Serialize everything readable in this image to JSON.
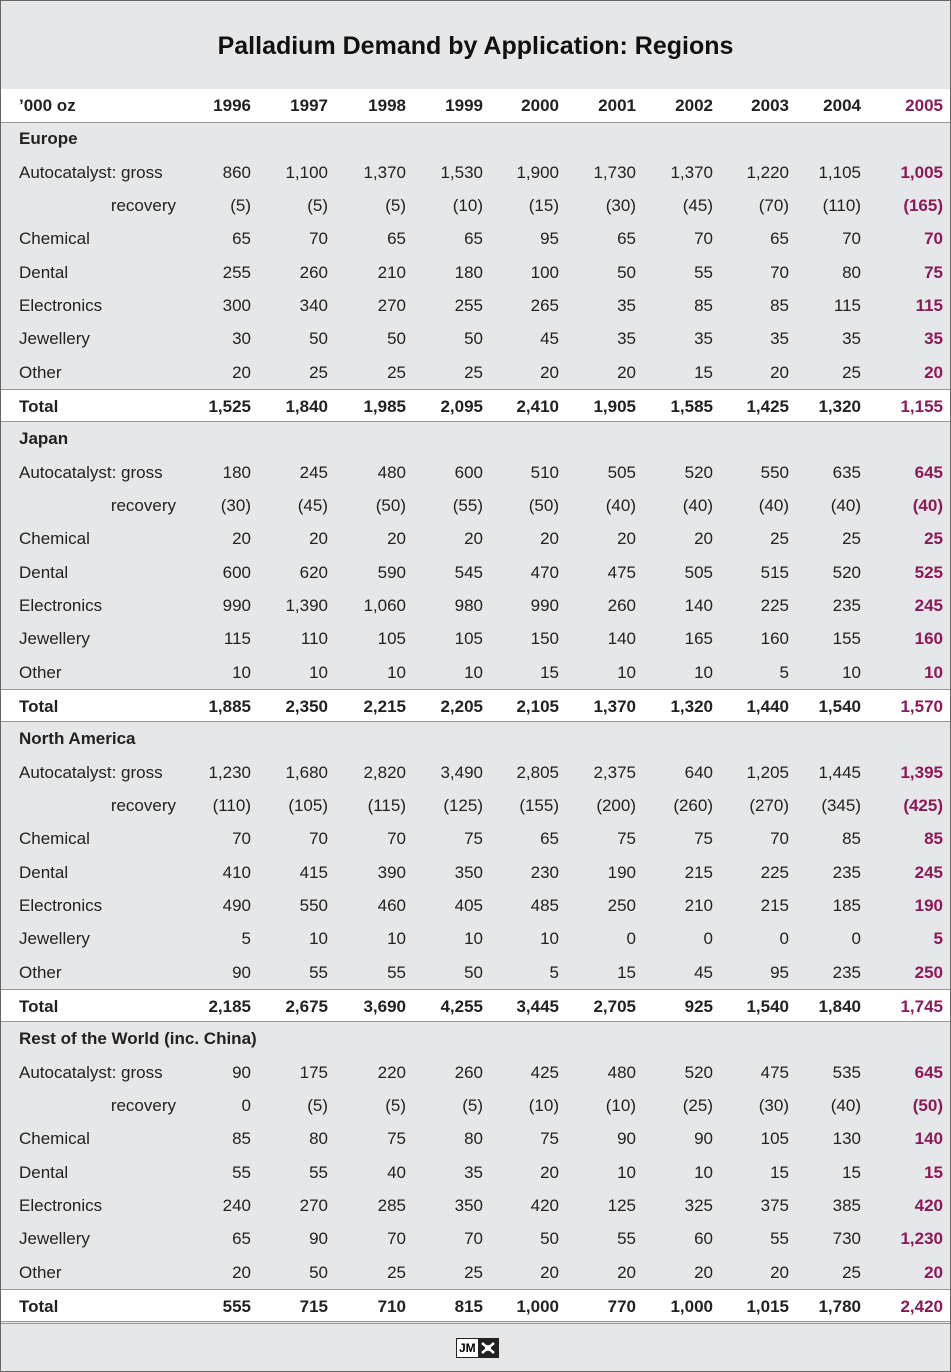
{
  "title": "Palladium Demand by Application: Regions",
  "header": {
    "label": "’000 oz",
    "years": [
      "1996",
      "1997",
      "1998",
      "1999",
      "2000",
      "2001",
      "2002",
      "2003",
      "2004",
      "2005"
    ]
  },
  "sections": [
    {
      "name": "Europe",
      "rows": [
        {
          "label": "Autocatalyst: gross",
          "values": [
            "860",
            "1,100",
            "1,370",
            "1,530",
            "1,900",
            "1,730",
            "1,370",
            "1,220",
            "1,105",
            "1,005"
          ]
        },
        {
          "label": "recovery",
          "values": [
            "(5)",
            "(5)",
            "(5)",
            "(10)",
            "(15)",
            "(30)",
            "(45)",
            "(70)",
            "(110)",
            "(165)"
          ]
        },
        {
          "label": "Chemical",
          "values": [
            "65",
            "70",
            "65",
            "65",
            "95",
            "65",
            "70",
            "65",
            "70",
            "70"
          ]
        },
        {
          "label": "Dental",
          "values": [
            "255",
            "260",
            "210",
            "180",
            "100",
            "50",
            "55",
            "70",
            "80",
            "75"
          ]
        },
        {
          "label": "Electronics",
          "values": [
            "300",
            "340",
            "270",
            "255",
            "265",
            "35",
            "85",
            "85",
            "115",
            "115"
          ]
        },
        {
          "label": "Jewellery",
          "values": [
            "30",
            "50",
            "50",
            "50",
            "45",
            "35",
            "35",
            "35",
            "35",
            "35"
          ]
        },
        {
          "label": "Other",
          "values": [
            "20",
            "25",
            "25",
            "25",
            "20",
            "20",
            "15",
            "20",
            "25",
            "20"
          ]
        }
      ],
      "total": {
        "label": "Total",
        "values": [
          "1,525",
          "1,840",
          "1,985",
          "2,095",
          "2,410",
          "1,905",
          "1,585",
          "1,425",
          "1,320",
          "1,155"
        ]
      }
    },
    {
      "name": "Japan",
      "rows": [
        {
          "label": "Autocatalyst: gross",
          "values": [
            "180",
            "245",
            "480",
            "600",
            "510",
            "505",
            "520",
            "550",
            "635",
            "645"
          ]
        },
        {
          "label": "recovery",
          "values": [
            "(30)",
            "(45)",
            "(50)",
            "(55)",
            "(50)",
            "(40)",
            "(40)",
            "(40)",
            "(40)",
            "(40)"
          ]
        },
        {
          "label": "Chemical",
          "values": [
            "20",
            "20",
            "20",
            "20",
            "20",
            "20",
            "20",
            "25",
            "25",
            "25"
          ]
        },
        {
          "label": "Dental",
          "values": [
            "600",
            "620",
            "590",
            "545",
            "470",
            "475",
            "505",
            "515",
            "520",
            "525"
          ]
        },
        {
          "label": "Electronics",
          "values": [
            "990",
            "1,390",
            "1,060",
            "980",
            "990",
            "260",
            "140",
            "225",
            "235",
            "245"
          ]
        },
        {
          "label": "Jewellery",
          "values": [
            "115",
            "110",
            "105",
            "105",
            "150",
            "140",
            "165",
            "160",
            "155",
            "160"
          ]
        },
        {
          "label": "Other",
          "values": [
            "10",
            "10",
            "10",
            "10",
            "15",
            "10",
            "10",
            "5",
            "10",
            "10"
          ]
        }
      ],
      "total": {
        "label": "Total",
        "values": [
          "1,885",
          "2,350",
          "2,215",
          "2,205",
          "2,105",
          "1,370",
          "1,320",
          "1,440",
          "1,540",
          "1,570"
        ]
      }
    },
    {
      "name": "North America",
      "rows": [
        {
          "label": "Autocatalyst: gross",
          "values": [
            "1,230",
            "1,680",
            "2,820",
            "3,490",
            "2,805",
            "2,375",
            "640",
            "1,205",
            "1,445",
            "1,395"
          ]
        },
        {
          "label": "recovery",
          "values": [
            "(110)",
            "(105)",
            "(115)",
            "(125)",
            "(155)",
            "(200)",
            "(260)",
            "(270)",
            "(345)",
            "(425)"
          ]
        },
        {
          "label": "Chemical",
          "values": [
            "70",
            "70",
            "70",
            "75",
            "65",
            "75",
            "75",
            "70",
            "85",
            "85"
          ]
        },
        {
          "label": "Dental",
          "values": [
            "410",
            "415",
            "390",
            "350",
            "230",
            "190",
            "215",
            "225",
            "235",
            "245"
          ]
        },
        {
          "label": "Electronics",
          "values": [
            "490",
            "550",
            "460",
            "405",
            "485",
            "250",
            "210",
            "215",
            "185",
            "190"
          ]
        },
        {
          "label": "Jewellery",
          "values": [
            "5",
            "10",
            "10",
            "10",
            "10",
            "0",
            "0",
            "0",
            "0",
            "5"
          ]
        },
        {
          "label": "Other",
          "values": [
            "90",
            "55",
            "55",
            "50",
            "5",
            "15",
            "45",
            "95",
            "235",
            "250"
          ]
        }
      ],
      "total": {
        "label": "Total",
        "values": [
          "2,185",
          "2,675",
          "3,690",
          "4,255",
          "3,445",
          "2,705",
          "925",
          "1,540",
          "1,840",
          "1,745"
        ]
      }
    },
    {
      "name": "Rest of the World (inc. China)",
      "rows": [
        {
          "label": "Autocatalyst: gross",
          "values": [
            "90",
            "175",
            "220",
            "260",
            "425",
            "480",
            "520",
            "475",
            "535",
            "645"
          ]
        },
        {
          "label": "recovery",
          "values": [
            "0",
            "(5)",
            "(5)",
            "(5)",
            "(10)",
            "(10)",
            "(25)",
            "(30)",
            "(40)",
            "(50)"
          ]
        },
        {
          "label": "Chemical",
          "values": [
            "85",
            "80",
            "75",
            "80",
            "75",
            "90",
            "90",
            "105",
            "130",
            "140"
          ]
        },
        {
          "label": "Dental",
          "values": [
            "55",
            "55",
            "40",
            "35",
            "20",
            "10",
            "10",
            "15",
            "15",
            "15"
          ]
        },
        {
          "label": "Electronics",
          "values": [
            "240",
            "270",
            "285",
            "350",
            "420",
            "125",
            "325",
            "375",
            "385",
            "420"
          ]
        },
        {
          "label": "Jewellery",
          "values": [
            "65",
            "90",
            "70",
            "70",
            "50",
            "55",
            "60",
            "55",
            "730",
            "1,230"
          ]
        },
        {
          "label": "Other",
          "values": [
            "20",
            "50",
            "25",
            "25",
            "20",
            "20",
            "20",
            "20",
            "25",
            "20"
          ]
        }
      ],
      "total": {
        "label": "Total",
        "values": [
          "555",
          "715",
          "710",
          "815",
          "1,000",
          "770",
          "1,000",
          "1,015",
          "1,780",
          "2,420"
        ]
      }
    }
  ],
  "footer": {
    "logo": "JM"
  }
}
